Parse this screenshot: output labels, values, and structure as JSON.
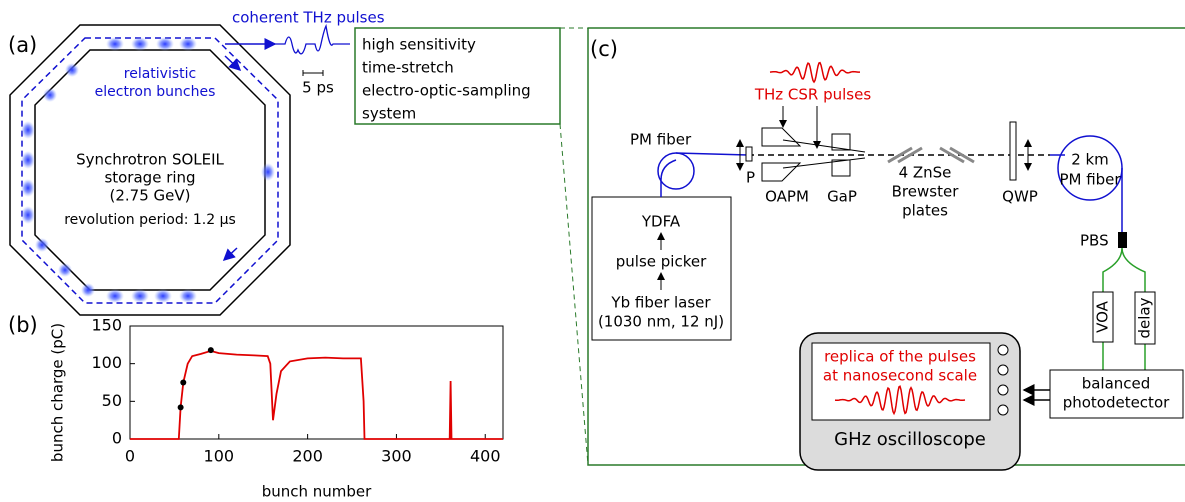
{
  "panel_a": {
    "label": "(a)",
    "output": "coherent THz pulses",
    "bunches": [
      "relativistic",
      "electron bunches"
    ],
    "ring": [
      "Synchrotron SOLEIL",
      "storage ring",
      "(2.75 GeV)"
    ],
    "period": "revolution period: 1.2 µs",
    "scale": "5 ps",
    "system": [
      "high sensitivity",
      "time-stretch",
      "electro-optic-sampling",
      "system"
    ]
  },
  "panel_b": {
    "label": "(b)"
  },
  "panel_c": {
    "label": "(c)",
    "csr": "THz CSR pulses",
    "pm_fiber": "PM fiber",
    "polarizer": "P",
    "oapm": "OAPM",
    "gap": "GaP",
    "znse": [
      "4 ZnSe",
      "Brewster",
      "plates"
    ],
    "qwp": "QWP",
    "long_fiber": [
      "2 km",
      "PM fiber"
    ],
    "pbs": "PBS",
    "voa": "VOA",
    "delay": "delay",
    "source": [
      "YDFA",
      "pulse picker",
      "Yb fiber laser",
      "(1030 nm, 12 nJ)"
    ],
    "detector": [
      "balanced",
      "photodetector"
    ],
    "screen": [
      "replica of the pulses",
      "at nanosecond scale"
    ],
    "scope": "GHz oscilloscope"
  },
  "chart_data": {
    "type": "line",
    "x_label": "bunch number",
    "y_label": "bunch charge (pC)",
    "xlim": [
      0,
      420
    ],
    "ylim": [
      0,
      150
    ],
    "xticks": [
      0,
      100,
      200,
      300,
      400
    ],
    "yticks": [
      0,
      50,
      100,
      150
    ],
    "series": [
      {
        "color": "#e00000",
        "x": [
          0,
          55,
          57,
          60,
          65,
          70,
          80,
          91,
          100,
          120,
          140,
          155,
          158,
          161,
          165,
          170,
          180,
          200,
          220,
          240,
          260,
          263,
          264,
          360,
          361,
          362,
          420
        ],
        "values": [
          0,
          0,
          42,
          75,
          100,
          110,
          113,
          117,
          114,
          112,
          111,
          110,
          100,
          25,
          60,
          90,
          103,
          107,
          108,
          107,
          107,
          50,
          0,
          0,
          77,
          0,
          0
        ]
      },
      {
        "color": "#000000",
        "marker": true,
        "x": [
          57,
          60,
          91
        ],
        "values": [
          42,
          75,
          118
        ]
      }
    ]
  }
}
